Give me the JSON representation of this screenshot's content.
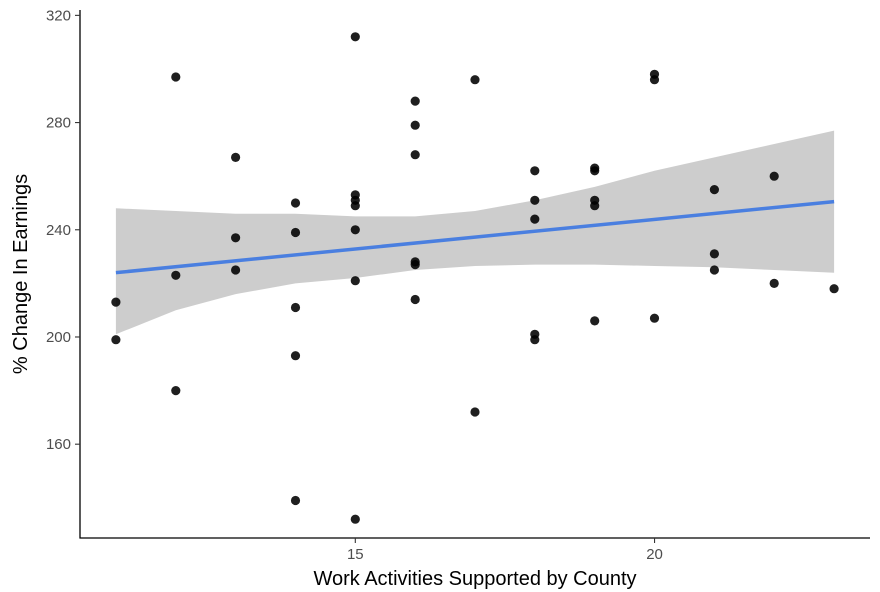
{
  "chart_data": {
    "type": "scatter",
    "title": "",
    "xlabel": "Work Activities Supported by County",
    "ylabel": "% Change In Earnings",
    "xlim": [
      10.4,
      23.6
    ],
    "ylim": [
      125,
      322
    ],
    "x_ticks": [
      15,
      20
    ],
    "y_ticks": [
      160,
      200,
      240,
      280,
      320
    ],
    "grid": false,
    "legend": "none",
    "colors": {
      "point": "#000000",
      "fit_line": "#4a7fe0",
      "ribbon": "#c8c8c8",
      "axis": "#000000"
    },
    "points": [
      {
        "x": 11,
        "y": 213
      },
      {
        "x": 11,
        "y": 199
      },
      {
        "x": 12,
        "y": 297
      },
      {
        "x": 12,
        "y": 223
      },
      {
        "x": 12,
        "y": 180
      },
      {
        "x": 13,
        "y": 267
      },
      {
        "x": 13,
        "y": 237
      },
      {
        "x": 13,
        "y": 225
      },
      {
        "x": 14,
        "y": 250
      },
      {
        "x": 14,
        "y": 239
      },
      {
        "x": 14,
        "y": 211
      },
      {
        "x": 14,
        "y": 193
      },
      {
        "x": 14,
        "y": 139
      },
      {
        "x": 15,
        "y": 312
      },
      {
        "x": 15,
        "y": 253
      },
      {
        "x": 15,
        "y": 251
      },
      {
        "x": 15,
        "y": 249
      },
      {
        "x": 15,
        "y": 240
      },
      {
        "x": 15,
        "y": 221
      },
      {
        "x": 15,
        "y": 132
      },
      {
        "x": 16,
        "y": 288
      },
      {
        "x": 16,
        "y": 279
      },
      {
        "x": 16,
        "y": 268
      },
      {
        "x": 16,
        "y": 228
      },
      {
        "x": 16,
        "y": 227
      },
      {
        "x": 16,
        "y": 214
      },
      {
        "x": 17,
        "y": 296
      },
      {
        "x": 17,
        "y": 172
      },
      {
        "x": 18,
        "y": 262
      },
      {
        "x": 18,
        "y": 251
      },
      {
        "x": 18,
        "y": 244
      },
      {
        "x": 18,
        "y": 201
      },
      {
        "x": 18,
        "y": 199
      },
      {
        "x": 19,
        "y": 263
      },
      {
        "x": 19,
        "y": 262
      },
      {
        "x": 19,
        "y": 251
      },
      {
        "x": 19,
        "y": 249
      },
      {
        "x": 19,
        "y": 206
      },
      {
        "x": 20,
        "y": 298
      },
      {
        "x": 20,
        "y": 296
      },
      {
        "x": 20,
        "y": 207
      },
      {
        "x": 21,
        "y": 255
      },
      {
        "x": 21,
        "y": 231
      },
      {
        "x": 21,
        "y": 225
      },
      {
        "x": 22,
        "y": 260
      },
      {
        "x": 22,
        "y": 220
      },
      {
        "x": 23,
        "y": 218
      }
    ],
    "trend": {
      "method": "linear",
      "x": [
        11,
        23
      ],
      "y": [
        224,
        250.5
      ],
      "ribbon": [
        {
          "x": 11,
          "lo": 201,
          "hi": 248
        },
        {
          "x": 12,
          "lo": 210,
          "hi": 247
        },
        {
          "x": 13,
          "lo": 216,
          "hi": 246
        },
        {
          "x": 14,
          "lo": 220,
          "hi": 246
        },
        {
          "x": 15,
          "lo": 222,
          "hi": 245
        },
        {
          "x": 16,
          "lo": 225,
          "hi": 245
        },
        {
          "x": 17,
          "lo": 226.5,
          "hi": 247
        },
        {
          "x": 18,
          "lo": 227,
          "hi": 251
        },
        {
          "x": 19,
          "lo": 227,
          "hi": 256
        },
        {
          "x": 20,
          "lo": 226.5,
          "hi": 262
        },
        {
          "x": 21,
          "lo": 226,
          "hi": 267
        },
        {
          "x": 22,
          "lo": 225,
          "hi": 272
        },
        {
          "x": 23,
          "lo": 224,
          "hi": 277
        }
      ]
    }
  }
}
